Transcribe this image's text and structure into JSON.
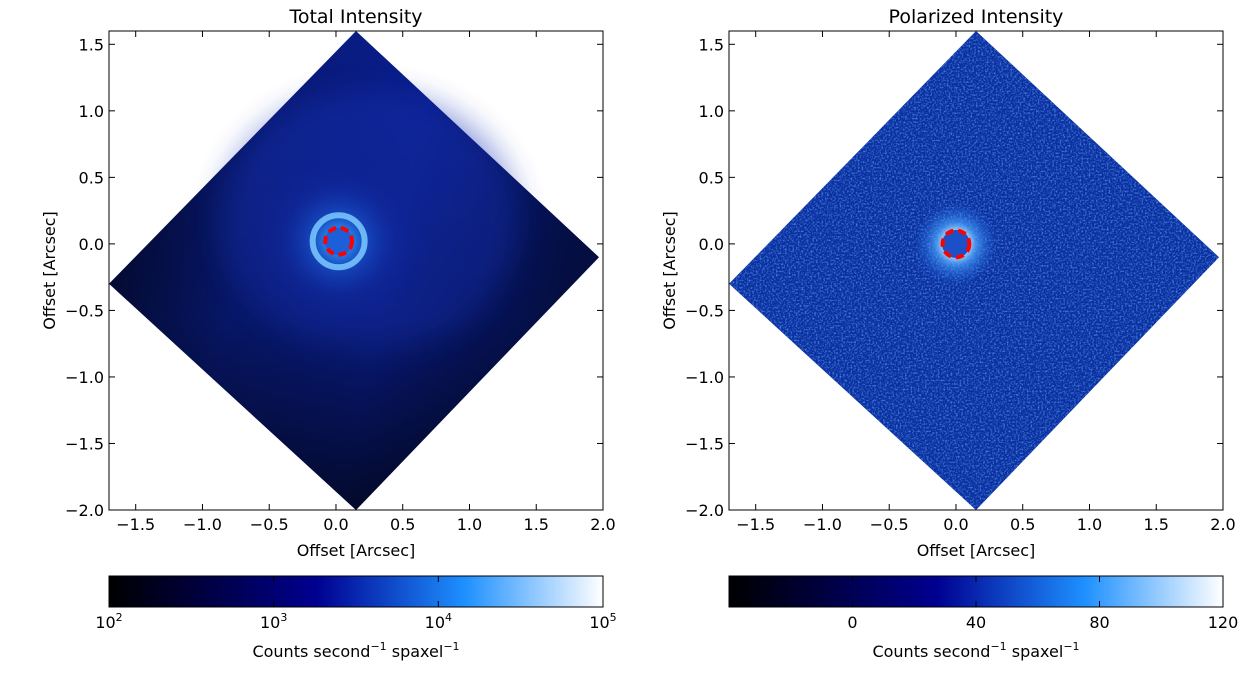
{
  "chart_data": [
    {
      "type": "heatmap",
      "title": "Total Intensity",
      "xlabel": "Offset [Arcsec]",
      "ylabel": "Offset [Arcsec]",
      "xlim": [
        -1.7,
        2.0
      ],
      "ylim": [
        -2.0,
        1.6
      ],
      "xticks": [
        -1.5,
        -1.0,
        -0.5,
        0.0,
        0.5,
        1.0,
        1.5,
        2.0
      ],
      "xtick_labels": [
        "−1.5",
        "−1.0",
        "−0.5",
        "0.0",
        "0.5",
        "1.0",
        "1.5",
        "2.0"
      ],
      "yticks": [
        1.5,
        1.0,
        0.5,
        0.0,
        -0.5,
        -1.0,
        -1.5,
        -2.0
      ],
      "ytick_labels": [
        "1.5",
        "1.0",
        "0.5",
        "0.0",
        "−0.5",
        "−1.0",
        "−1.5",
        "−2.0"
      ],
      "colormap": [
        "#000000",
        "#000080",
        "#1e90ff",
        "#ffffff"
      ],
      "footprint_vertices": [
        [
          0.15,
          1.6
        ],
        [
          1.97,
          -0.1
        ],
        [
          0.15,
          -2.0
        ],
        [
          -1.7,
          -0.3
        ]
      ],
      "source_center": [
        0.02,
        0.02
      ],
      "mask_circle": {
        "center": [
          0.02,
          0.02
        ],
        "radius": 0.1,
        "color": "#ff0000",
        "style": "dashed"
      },
      "colorbar": {
        "scale": "log",
        "range": [
          100,
          100000
        ],
        "ticks": [
          100,
          1000,
          10000,
          100000
        ],
        "tick_labels": [
          {
            "base": "10",
            "exp": "2"
          },
          {
            "base": "10",
            "exp": "3"
          },
          {
            "base": "10",
            "exp": "4"
          },
          {
            "base": "10",
            "exp": "5"
          }
        ],
        "label": {
          "main": "Counts  second",
          "exp1": "−1",
          "mid": "  spaxel",
          "exp2": "−1"
        }
      }
    },
    {
      "type": "heatmap",
      "title": "Polarized Intensity",
      "xlabel": "Offset [Arcsec]",
      "ylabel": "Offset [Arcsec]",
      "xlim": [
        -1.7,
        2.0
      ],
      "ylim": [
        -2.0,
        1.6
      ],
      "xticks": [
        -1.5,
        -1.0,
        -0.5,
        0.0,
        0.5,
        1.0,
        1.5,
        2.0
      ],
      "xtick_labels": [
        "−1.5",
        "−1.0",
        "−0.5",
        "0.0",
        "0.5",
        "1.0",
        "1.5",
        "2.0"
      ],
      "yticks": [
        1.5,
        1.0,
        0.5,
        0.0,
        -0.5,
        -1.0,
        -1.5,
        -2.0
      ],
      "ytick_labels": [
        "1.5",
        "1.0",
        "0.5",
        "0.0",
        "−0.5",
        "−1.0",
        "−1.5",
        "−2.0"
      ],
      "colormap": [
        "#000000",
        "#000080",
        "#1e90ff",
        "#ffffff"
      ],
      "footprint_vertices": [
        [
          0.15,
          1.6
        ],
        [
          1.97,
          -0.1
        ],
        [
          0.15,
          -2.0
        ],
        [
          -1.7,
          -0.3
        ]
      ],
      "source_center": [
        0.0,
        0.0
      ],
      "mask_circle": {
        "center": [
          0.0,
          0.0
        ],
        "radius": 0.1,
        "color": "#ff0000",
        "style": "dashed"
      },
      "colorbar": {
        "scale": "linear",
        "range": [
          -40,
          120
        ],
        "ticks": [
          0,
          40,
          80,
          120
        ],
        "tick_labels": [
          "0",
          "40",
          "80",
          "120"
        ],
        "label": {
          "main": "Counts  second",
          "exp1": "−1",
          "mid": "  spaxel",
          "exp2": "−1"
        }
      }
    }
  ]
}
